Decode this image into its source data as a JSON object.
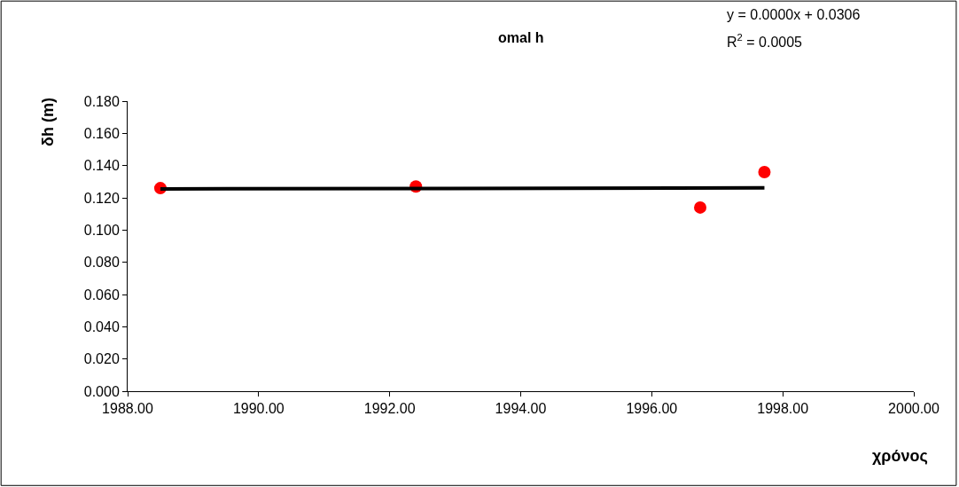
{
  "chart_data": {
    "type": "scatter",
    "title": "omal h",
    "xlabel": "χρόνος",
    "ylabel": "δh (m)",
    "annotations": [
      "y = 0.0000x + 0.0306",
      "R$^{2}$ = 0.0005"
    ],
    "series": [
      {
        "color": "#ff0000",
        "x": [
          1988.5,
          1992.4,
          1996.74,
          1997.72
        ],
        "values": [
          0.126,
          0.127,
          0.114,
          0.136
        ],
        "marker": "circle"
      },
      {
        "type": "line",
        "color": "#000000",
        "x": [
          1988.5,
          1997.72
        ],
        "values": [
          0.1255,
          0.1262
        ],
        "marker": "none",
        "line_style": "solid"
      }
    ],
    "xlim": [
      1988,
      2000
    ],
    "xticks": [
      {
        "value": 1988,
        "label": "1988.00"
      },
      {
        "value": 1990,
        "label": "1990.00"
      },
      {
        "value": 1992,
        "label": "1992.00"
      },
      {
        "value": 1994,
        "label": "1994.00"
      },
      {
        "value": 1996,
        "label": "1996.00"
      },
      {
        "value": 1998,
        "label": "1998.00"
      },
      {
        "value": 2000,
        "label": "2000.00"
      }
    ],
    "ylim": [
      0,
      0.18
    ],
    "yticks": [
      {
        "value": 0,
        "label": "0.000"
      },
      {
        "value": 0.02,
        "label": "0.020"
      },
      {
        "value": 0.04,
        "label": "0.040"
      },
      {
        "value": 0.06,
        "label": "0.060"
      },
      {
        "value": 0.08,
        "label": "0.080"
      },
      {
        "value": 0.1,
        "label": "0.100"
      },
      {
        "value": 0.12,
        "label": "0.120"
      },
      {
        "value": 0.14,
        "label": "0.140"
      },
      {
        "value": 0.16,
        "label": "0.160"
      },
      {
        "value": 0.18,
        "label": "0.180"
      }
    ]
  }
}
